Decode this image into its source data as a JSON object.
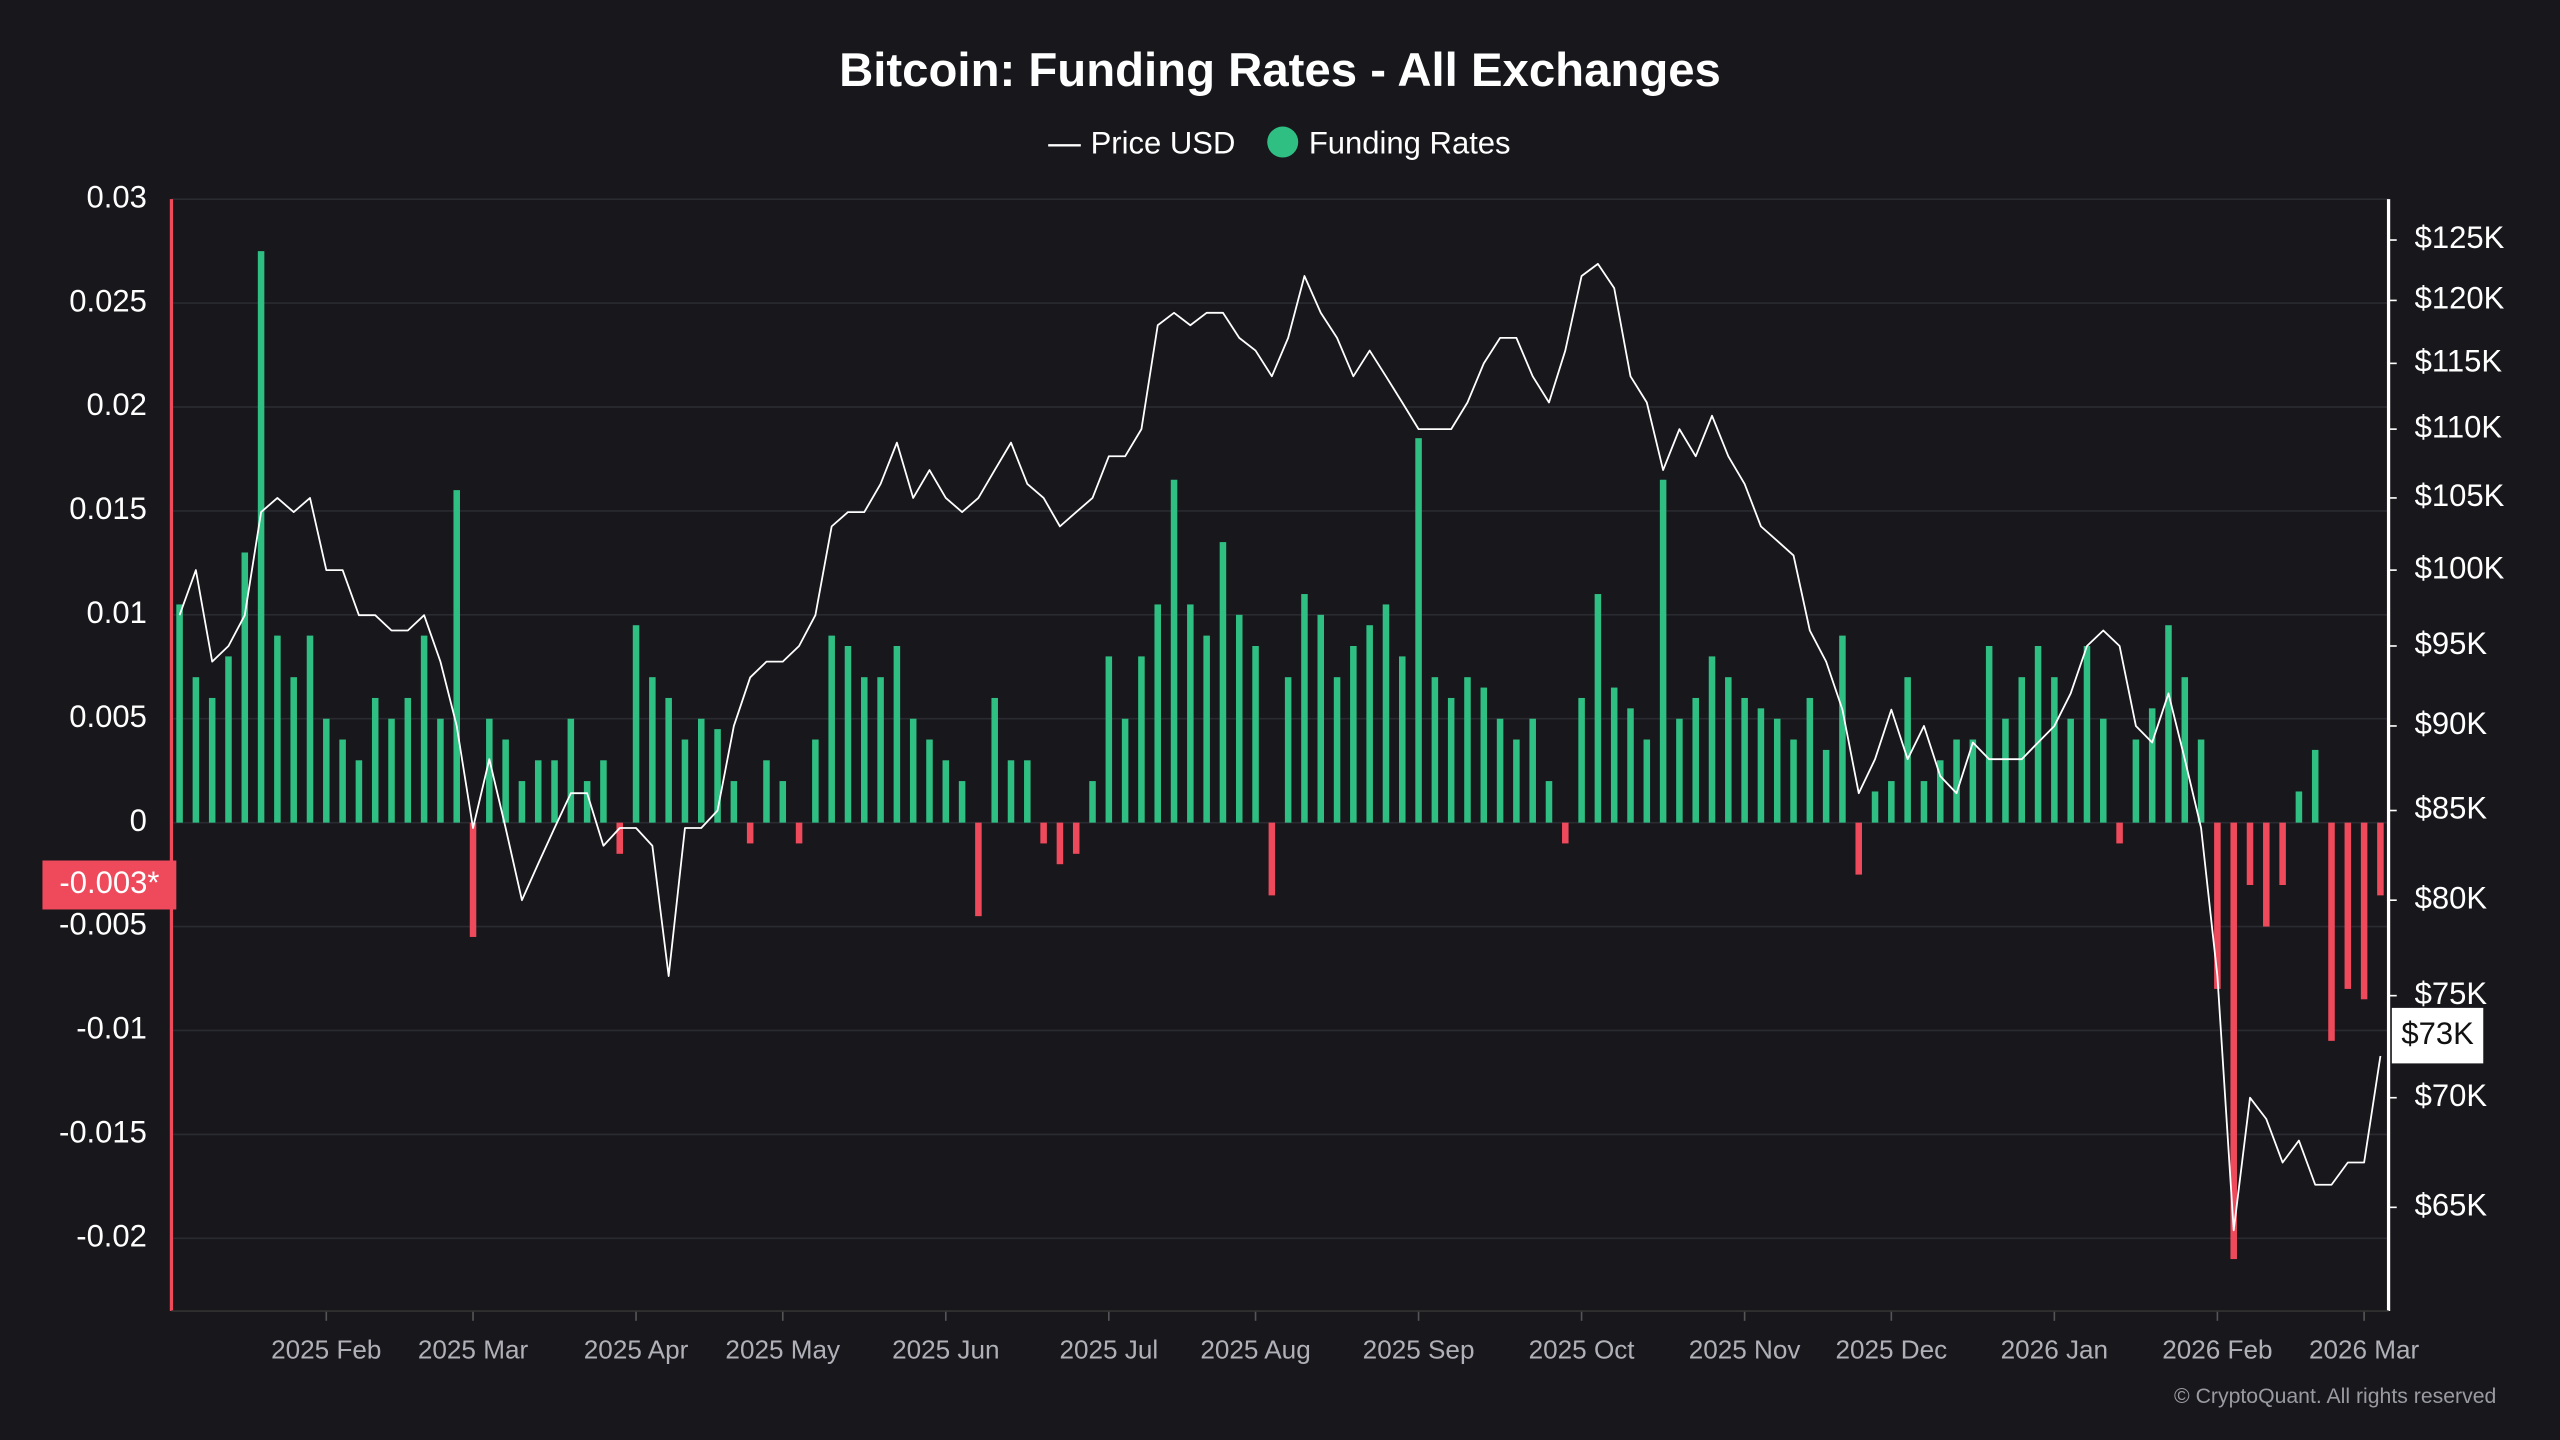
{
  "chart_data": {
    "type": "combo",
    "title": "Bitcoin: Funding Rates - All Exchanges",
    "footer": "© CryptoQuant. All rights reserved",
    "categories": [
      null,
      null,
      null,
      null,
      null,
      null,
      null,
      null,
      null,
      "2025 Feb",
      null,
      null,
      null,
      null,
      null,
      null,
      null,
      null,
      "2025 Mar",
      null,
      null,
      null,
      null,
      null,
      null,
      null,
      null,
      null,
      "2025 Apr",
      null,
      null,
      null,
      null,
      null,
      null,
      null,
      null,
      "2025 May",
      null,
      null,
      null,
      null,
      null,
      null,
      null,
      null,
      null,
      "2025 Jun",
      null,
      null,
      null,
      null,
      null,
      null,
      null,
      null,
      null,
      "2025 Jul",
      null,
      null,
      null,
      null,
      null,
      null,
      null,
      null,
      "2025 Aug",
      null,
      null,
      null,
      null,
      null,
      null,
      null,
      null,
      null,
      "2025 Sep",
      null,
      null,
      null,
      null,
      null,
      null,
      null,
      null,
      null,
      "2025 Oct",
      null,
      null,
      null,
      null,
      null,
      null,
      null,
      null,
      null,
      "2025 Nov",
      null,
      null,
      null,
      null,
      null,
      null,
      null,
      null,
      "2025 Dec",
      null,
      null,
      null,
      null,
      null,
      null,
      null,
      null,
      null,
      "2026 Jan",
      null,
      null,
      null,
      null,
      null,
      null,
      null,
      null,
      null,
      "2026 Feb",
      null,
      null,
      null,
      null,
      null,
      null,
      null,
      null,
      "2026 Mar",
      null
    ],
    "series": [
      {
        "name": "Funding Rates",
        "type": "bar",
        "axis": "y",
        "color": "#2fbf82",
        "negative_color": "#ef4a5c",
        "values": [
          0.0105,
          0.007,
          0.006,
          0.008,
          0.013,
          0.0275,
          0.009,
          0.007,
          0.009,
          0.005,
          0.004,
          0.003,
          0.006,
          0.005,
          0.006,
          0.009,
          0.005,
          0.016,
          -0.0055,
          0.005,
          0.004,
          0.002,
          0.003,
          0.003,
          0.005,
          0.002,
          0.003,
          -0.0015,
          0.0095,
          0.007,
          0.006,
          0.004,
          0.005,
          0.0045,
          0.002,
          -0.001,
          0.003,
          0.002,
          -0.001,
          0.004,
          0.009,
          0.0085,
          0.007,
          0.007,
          0.0085,
          0.005,
          0.004,
          0.003,
          0.002,
          -0.0045,
          0.006,
          0.003,
          0.003,
          -0.001,
          -0.002,
          -0.0015,
          0.002,
          0.008,
          0.005,
          0.008,
          0.0105,
          0.0165,
          0.0105,
          0.009,
          0.0135,
          0.01,
          0.0085,
          -0.0035,
          0.007,
          0.011,
          0.01,
          0.007,
          0.0085,
          0.0095,
          0.0105,
          0.008,
          0.0185,
          0.007,
          0.006,
          0.007,
          0.0065,
          0.005,
          0.004,
          0.005,
          0.002,
          -0.001,
          0.006,
          0.011,
          0.0065,
          0.0055,
          0.004,
          0.0165,
          0.005,
          0.006,
          0.008,
          0.007,
          0.006,
          0.0055,
          0.005,
          0.004,
          0.006,
          0.0035,
          0.009,
          -0.0025,
          0.0015,
          0.002,
          0.007,
          0.002,
          0.003,
          0.004,
          0.004,
          0.0085,
          0.005,
          0.007,
          0.0085,
          0.007,
          0.005,
          0.0085,
          0.005,
          -0.001,
          0.004,
          0.0055,
          0.0095,
          0.007,
          0.004,
          -0.008,
          -0.021,
          -0.003,
          -0.005,
          -0.003,
          0.0015,
          0.0035,
          -0.0105,
          -0.008,
          -0.0085,
          -0.0035
        ]
      },
      {
        "name": "Price USD",
        "type": "line",
        "axis": "y2",
        "color": "#ffffff",
        "values": [
          97000,
          100000,
          94000,
          95000,
          97000,
          104000,
          105000,
          104000,
          105000,
          100000,
          100000,
          97000,
          97000,
          96000,
          96000,
          97000,
          94000,
          90000,
          84000,
          88000,
          84000,
          80000,
          82000,
          84000,
          86000,
          86000,
          83000,
          84000,
          84000,
          83000,
          76000,
          84000,
          84000,
          85000,
          90000,
          93000,
          94000,
          94000,
          95000,
          97000,
          103000,
          104000,
          104000,
          106000,
          109000,
          105000,
          107000,
          105000,
          104000,
          105000,
          107000,
          109000,
          106000,
          105000,
          103000,
          104000,
          105000,
          108000,
          108000,
          110000,
          118000,
          119000,
          118000,
          119000,
          119000,
          117000,
          116000,
          114000,
          117000,
          122000,
          119000,
          117000,
          114000,
          116000,
          114000,
          112000,
          110000,
          110000,
          110000,
          112000,
          115000,
          117000,
          117000,
          114000,
          112000,
          116000,
          122000,
          123000,
          121000,
          114000,
          112000,
          107000,
          110000,
          108000,
          111000,
          108000,
          106000,
          103000,
          102000,
          101000,
          96000,
          94000,
          91000,
          86000,
          88000,
          91000,
          88000,
          90000,
          87000,
          86000,
          89000,
          88000,
          88000,
          88000,
          89000,
          90000,
          92000,
          95000,
          96000,
          95000,
          90000,
          89000,
          92000,
          88000,
          84000,
          76000,
          64000,
          70000,
          69000,
          67000,
          68000,
          66000,
          66000,
          67000,
          67000,
          72000
        ]
      }
    ],
    "legend_order": [
      1,
      0
    ],
    "ylim": [
      -0.0235,
      0.03
    ],
    "yticks": [
      -0.02,
      -0.015,
      -0.01,
      -0.005,
      0,
      0.005,
      0.01,
      0.015,
      0.02,
      0.025,
      0.03
    ],
    "y2lim": [
      60600,
      128500
    ],
    "y2_scale": "log",
    "y2ticks": [
      {
        "value": 65000,
        "label": "$65K"
      },
      {
        "value": 70000,
        "label": "$70K"
      },
      {
        "value": 75000,
        "label": "$75K"
      },
      {
        "value": 80000,
        "label": "$80K"
      },
      {
        "value": 85000,
        "label": "$85K"
      },
      {
        "value": 90000,
        "label": "$90K"
      },
      {
        "value": 95000,
        "label": "$95K"
      },
      {
        "value": 100000,
        "label": "$100K"
      },
      {
        "value": 105000,
        "label": "$105K"
      },
      {
        "value": 110000,
        "label": "$110K"
      },
      {
        "value": 115000,
        "label": "$115K"
      },
      {
        "value": 120000,
        "label": "$120K"
      },
      {
        "value": 125000,
        "label": "$125K"
      }
    ],
    "grid": true,
    "annotations": [
      {
        "axis": "y",
        "value": -0.003,
        "label": "-0.003*",
        "color": "#ef4a5c"
      },
      {
        "axis": "y2",
        "value": 73000,
        "label": "$73K",
        "color": "#ffffff"
      }
    ]
  }
}
